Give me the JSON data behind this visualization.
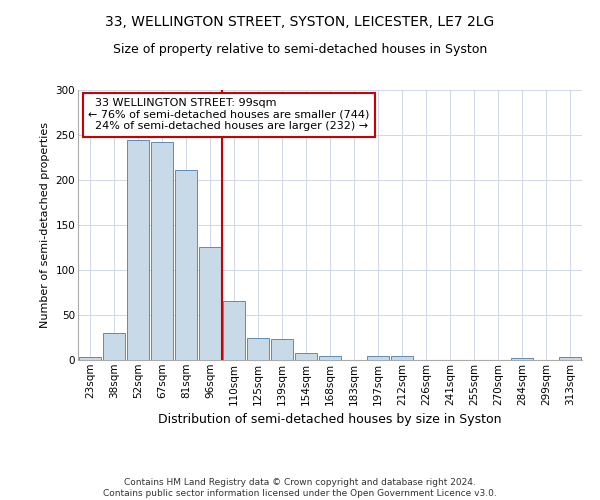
{
  "title": "33, WELLINGTON STREET, SYSTON, LEICESTER, LE7 2LG",
  "subtitle": "Size of property relative to semi-detached houses in Syston",
  "xlabel": "Distribution of semi-detached houses by size in Syston",
  "ylabel": "Number of semi-detached properties",
  "categories": [
    "23sqm",
    "38sqm",
    "52sqm",
    "67sqm",
    "81sqm",
    "96sqm",
    "110sqm",
    "125sqm",
    "139sqm",
    "154sqm",
    "168sqm",
    "183sqm",
    "197sqm",
    "212sqm",
    "226sqm",
    "241sqm",
    "255sqm",
    "270sqm",
    "284sqm",
    "299sqm",
    "313sqm"
  ],
  "values": [
    3,
    30,
    244,
    242,
    211,
    126,
    66,
    25,
    23,
    8,
    4,
    0,
    4,
    4,
    0,
    0,
    0,
    0,
    2,
    0,
    3
  ],
  "bar_color": "#c8d9e8",
  "bar_edge_color": "#5b8db8",
  "highlight_color": "#cc0000",
  "annotation_text": "  33 WELLINGTON STREET: 99sqm\n← 76% of semi-detached houses are smaller (744)\n  24% of semi-detached houses are larger (232) →",
  "annotation_box_color": "#ffffff",
  "annotation_box_edge_color": "#cc0000",
  "ylim": [
    0,
    300
  ],
  "yticks": [
    0,
    50,
    100,
    150,
    200,
    250,
    300
  ],
  "footer": "Contains HM Land Registry data © Crown copyright and database right 2024.\nContains public sector information licensed under the Open Government Licence v3.0.",
  "title_fontsize": 10,
  "subtitle_fontsize": 9,
  "ylabel_fontsize": 8,
  "xlabel_fontsize": 9,
  "tick_fontsize": 7.5,
  "footer_fontsize": 6.5,
  "annotation_fontsize": 8
}
